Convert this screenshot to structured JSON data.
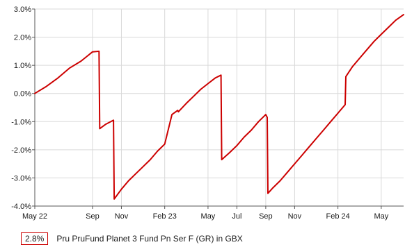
{
  "chart_data": {
    "type": "line",
    "title": "",
    "xlabel": "",
    "ylabel": "",
    "ylim": [
      -4.0,
      3.0
    ],
    "y_ticks": [
      "3.0%",
      "2.0%",
      "1.0%",
      "0.0%",
      "-1.0%",
      "-2.0%",
      "-3.0%",
      "-4.0%"
    ],
    "y_tick_values": [
      3,
      2,
      1,
      0,
      -1,
      -2,
      -3,
      -4
    ],
    "x_ticks": [
      "May 22",
      "Sep",
      "Nov",
      "Feb 23",
      "May",
      "Jul",
      "Sep",
      "Nov",
      "Feb 24",
      "May"
    ],
    "x_tick_values": [
      0,
      4,
      6,
      9,
      12,
      14,
      16,
      18,
      21,
      24
    ],
    "grid": true,
    "legend_position": "bottom-left",
    "colors": {
      "series": "#cc0000",
      "grid": "#d9d9d9",
      "axis": "#555555"
    },
    "series": [
      {
        "name": "Pru PruFund Planet 3 Fund Pn Ser F (GR) in GBX",
        "x": [
          0,
          0.8,
          1.6,
          2.4,
          3.2,
          4.0,
          4.45,
          4.5,
          4.9,
          5.45,
          5.5,
          6.0,
          6.5,
          7.0,
          7.5,
          8.0,
          8.5,
          9.0,
          9.5,
          9.9,
          9.95,
          10.5,
          11.0,
          11.5,
          12.0,
          12.5,
          12.9,
          12.95,
          13.5,
          14.0,
          14.5,
          15.0,
          15.5,
          16.0,
          16.1,
          16.15,
          16.5,
          17.0,
          17.5,
          18.0,
          18.5,
          19.0,
          19.5,
          20.0,
          20.5,
          21.0,
          21.5,
          21.55,
          22.0,
          22.5,
          23.0,
          23.5,
          24.0,
          24.5,
          25.0,
          25.55
        ],
        "y": [
          0.0,
          0.25,
          0.55,
          0.9,
          1.15,
          1.48,
          1.5,
          -1.25,
          -1.1,
          -0.95,
          -3.75,
          -3.4,
          -3.1,
          -2.85,
          -2.6,
          -2.35,
          -2.05,
          -1.8,
          -0.75,
          -0.6,
          -0.65,
          -0.35,
          -0.1,
          0.15,
          0.35,
          0.55,
          0.65,
          -2.35,
          -2.1,
          -1.85,
          -1.55,
          -1.3,
          -1.0,
          -0.75,
          -0.85,
          -3.55,
          -3.35,
          -3.1,
          -2.8,
          -2.5,
          -2.2,
          -1.9,
          -1.6,
          -1.3,
          -1.0,
          -0.7,
          -0.4,
          0.6,
          0.95,
          1.25,
          1.55,
          1.85,
          2.1,
          2.35,
          2.6,
          2.8
        ]
      }
    ],
    "legend": {
      "value_label": "2.8%",
      "series_label": "Pru PruFund Planet 3 Fund Pn Ser F (GR) in GBX"
    }
  }
}
